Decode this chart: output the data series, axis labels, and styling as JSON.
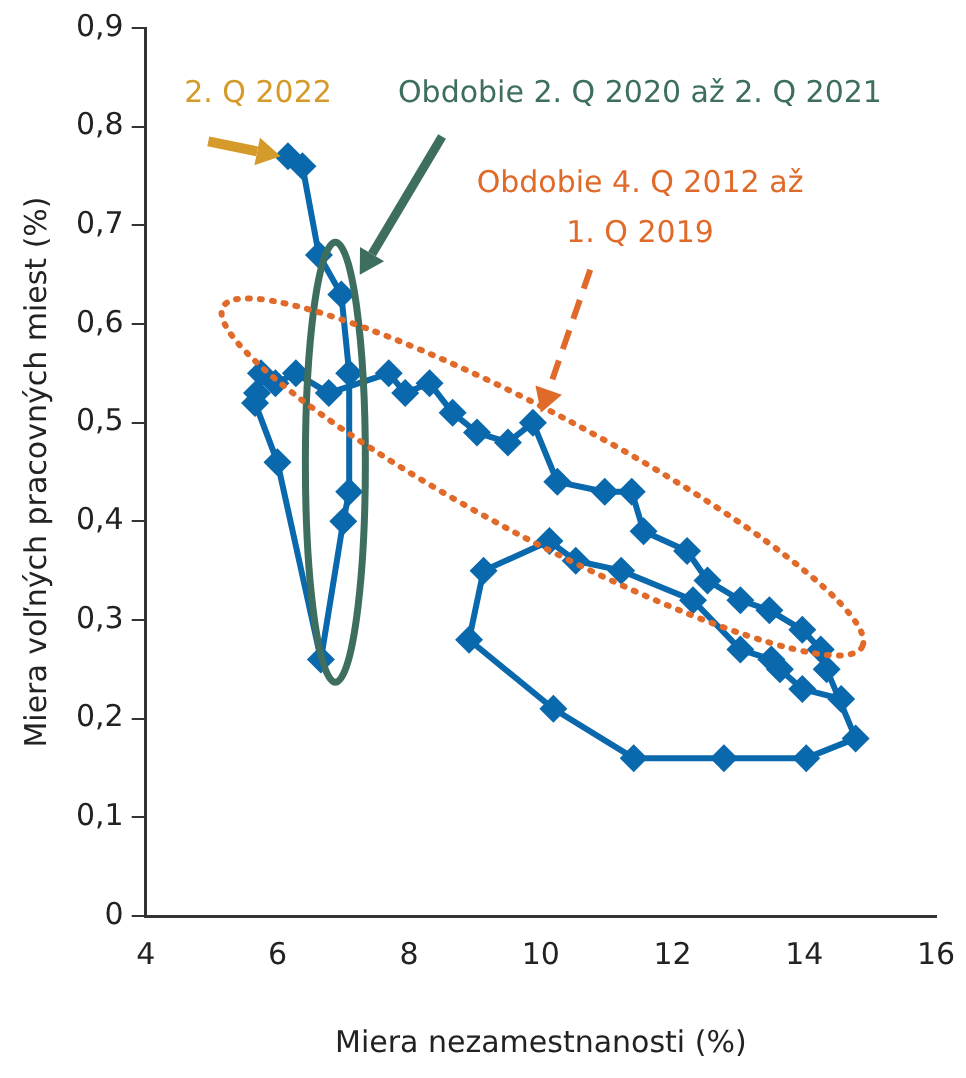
{
  "chart_data": {
    "type": "line",
    "xlabel": "Miera nezamestnanosti (%)",
    "ylabel": "Miera voľných pracovných miest (%)",
    "x": [
      14.56,
      13.97,
      13.63,
      13.5,
      13.03,
      12.31,
      11.22,
      10.53,
      10.13,
      9.13,
      8.91,
      10.19,
      11.41,
      12.78,
      14.03,
      14.78,
      14.34,
      14.25,
      13.97,
      13.47,
      13.03,
      12.53,
      12.22,
      11.56,
      11.38,
      10.97,
      10.25,
      9.88,
      9.5,
      9.03,
      8.66,
      8.31,
      7.94,
      7.69,
      6.78,
      6.28,
      5.97,
      5.75,
      5.69,
      5.66,
      6.0,
      6.66,
      7.0,
      7.09,
      7.09,
      6.97,
      6.63,
      6.38,
      6.16
    ],
    "series": [
      {
        "color": "#0a68ad",
        "values": [
          0.22,
          0.23,
          0.25,
          0.26,
          0.27,
          0.32,
          0.35,
          0.36,
          0.38,
          0.35,
          0.28,
          0.21,
          0.16,
          0.16,
          0.16,
          0.18,
          0.25,
          0.27,
          0.29,
          0.31,
          0.32,
          0.34,
          0.37,
          0.39,
          0.43,
          0.43,
          0.44,
          0.5,
          0.48,
          0.49,
          0.51,
          0.54,
          0.53,
          0.55,
          0.53,
          0.55,
          0.54,
          0.55,
          0.53,
          0.52,
          0.46,
          0.26,
          0.4,
          0.43,
          0.55,
          0.63,
          0.67,
          0.76,
          0.77
        ]
      }
    ],
    "xlim": [
      4,
      16
    ],
    "xticks": [
      4,
      6,
      8,
      10,
      12,
      14,
      16
    ],
    "ylim": [
      0,
      0.9
    ],
    "yticks": [
      {
        "value": 0,
        "label": "0"
      },
      {
        "value": 0.1,
        "label": "0,1"
      },
      {
        "value": 0.2,
        "label": "0,2"
      },
      {
        "value": 0.3,
        "label": "0,3"
      },
      {
        "value": 0.4,
        "label": "0,4"
      },
      {
        "value": 0.5,
        "label": "0,5"
      },
      {
        "value": 0.6,
        "label": "0,6"
      },
      {
        "value": 0.7,
        "label": "0,7"
      },
      {
        "value": 0.8,
        "label": "0,8"
      },
      {
        "value": 0.9,
        "label": "0,9"
      }
    ],
    "grid": false,
    "legend": false,
    "marker": "diamond",
    "line_style": "solid",
    "annotations": [
      "2. Q 2022",
      "Obdobie 2. Q 2020 až 2. Q 2021",
      "Obdobie 4. Q 2012 až 1. Q 2019"
    ]
  }
}
